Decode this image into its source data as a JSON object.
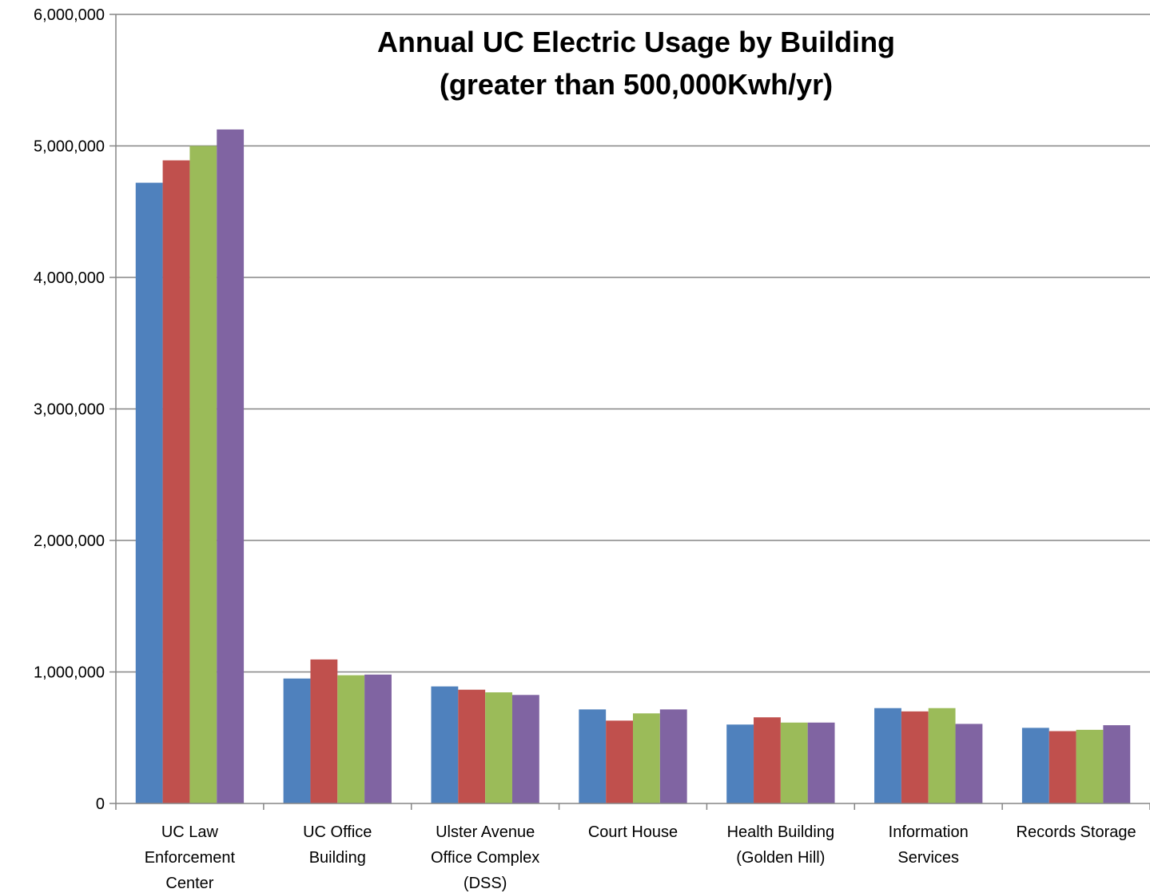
{
  "chart_data": {
    "type": "bar",
    "title_lines": [
      "Annual UC Electric Usage by Building",
      "(greater than 500,000Kwh/yr)"
    ],
    "xlabel": "",
    "ylabel": "",
    "ylim": [
      0,
      6000000
    ],
    "y_ticks": [
      {
        "value": 0,
        "label": "0"
      },
      {
        "value": 1000000,
        "label": "1,000,000"
      },
      {
        "value": 2000000,
        "label": "2,000,000"
      },
      {
        "value": 3000000,
        "label": "3,000,000"
      },
      {
        "value": 4000000,
        "label": "4,000,000"
      },
      {
        "value": 5000000,
        "label": "5,000,000"
      },
      {
        "value": 6000000,
        "label": "6,000,000"
      }
    ],
    "grid": true,
    "legend": "none",
    "categories": [
      [
        "UC Law",
        "Enforcement",
        "Center"
      ],
      [
        "UC Office",
        "Building"
      ],
      [
        "Ulster Avenue",
        "Office Complex",
        "(DSS)"
      ],
      [
        "Court House"
      ],
      [
        "Health Building",
        "(Golden Hill)"
      ],
      [
        "Information",
        "Services"
      ],
      [
        "Records Storage"
      ]
    ],
    "series": [
      {
        "color": "#4F81BD",
        "values": [
          4720000,
          950000,
          890000,
          715000,
          600000,
          725000,
          575000
        ]
      },
      {
        "color": "#C0504D",
        "values": [
          4890000,
          1095000,
          865000,
          630000,
          655000,
          700000,
          550000
        ]
      },
      {
        "color": "#9BBB59",
        "values": [
          5000000,
          975000,
          845000,
          685000,
          615000,
          725000,
          560000
        ]
      },
      {
        "color": "#8064A2",
        "values": [
          5125000,
          980000,
          825000,
          715000,
          615000,
          605000,
          595000
        ]
      }
    ]
  }
}
